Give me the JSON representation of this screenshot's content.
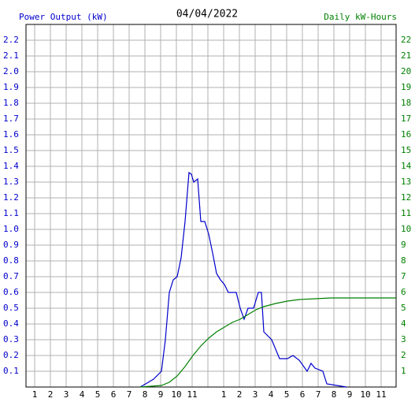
{
  "chart_data": {
    "type": "line",
    "title": "04/04/2022",
    "xlim": [
      0.45,
      23.95
    ],
    "xticks": [
      1,
      2,
      3,
      4,
      5,
      6,
      7,
      8,
      9,
      10,
      11,
      {
        "value": 12,
        "label": null
      },
      {
        "value": 13,
        "label": "1"
      },
      {
        "value": 14,
        "label": "2"
      },
      {
        "value": 15,
        "label": "3"
      },
      {
        "value": 16,
        "label": "4"
      },
      {
        "value": 17,
        "label": "5"
      },
      {
        "value": 18,
        "label": "6"
      },
      {
        "value": 19,
        "label": "7"
      },
      {
        "value": 20,
        "label": "8"
      },
      {
        "value": 21,
        "label": "9"
      },
      {
        "value": 22,
        "label": "10"
      },
      {
        "value": 23,
        "label": "11"
      }
    ],
    "ylim": [
      0,
      2.3
    ],
    "yticks": [
      0.1,
      0.2,
      0.3,
      0.4,
      0.5,
      0.6,
      0.7,
      0.8,
      0.9,
      {
        "value": 1,
        "label": "1.0"
      },
      1.1,
      1.2,
      1.3,
      1.4,
      1.5,
      1.6,
      1.7,
      1.8,
      1.9,
      {
        "value": 2,
        "label": "2.0"
      },
      2.1,
      2.2
    ],
    "y2lim": [
      0,
      23
    ],
    "y2ticks": [
      1,
      2,
      3,
      4,
      5,
      6,
      7,
      8,
      9,
      10,
      11,
      12,
      13,
      14,
      15,
      16,
      17,
      18,
      19,
      20,
      21,
      22
    ],
    "grid": true,
    "series": [
      {
        "name": "Power Output (kW)",
        "color": "#0000cc",
        "x": [
          7.7,
          8.05,
          8.55,
          9.05,
          9.3,
          9.55,
          9.8,
          10.05,
          10.3,
          10.55,
          10.8,
          10.95,
          11.1,
          11.35,
          11.55,
          11.8,
          12.05,
          12.3,
          12.55,
          12.8,
          13.05,
          13.3,
          13.8,
          14.05,
          14.3,
          14.55,
          14.9,
          15.2,
          15.4,
          15.55,
          16.05,
          16.55,
          17.05,
          17.4,
          17.8,
          18.3,
          18.55,
          18.8,
          19.3,
          19.55,
          20.8
        ],
        "values": [
          0,
          0.02,
          0.05,
          0.1,
          0.3,
          0.6,
          0.68,
          0.7,
          0.82,
          1.05,
          1.36,
          1.35,
          1.3,
          1.32,
          1.05,
          1.05,
          0.97,
          0.85,
          0.72,
          0.68,
          0.65,
          0.6,
          0.6,
          0.5,
          0.43,
          0.5,
          0.5,
          0.6,
          0.6,
          0.35,
          0.3,
          0.18,
          0.18,
          0.2,
          0.17,
          0.1,
          0.15,
          0.12,
          0.1,
          0.02,
          0
        ]
      },
      {
        "name": "Daily kW-Hours",
        "color": "#008000",
        "axis": "y2",
        "x": [
          7.7,
          9.05,
          9.55,
          10.05,
          10.55,
          11.05,
          11.55,
          12.05,
          12.55,
          13.05,
          13.55,
          14.05,
          14.55,
          15.05,
          15.55,
          16.3,
          17.05,
          17.8,
          18.8,
          19.8,
          23.95
        ],
        "values": [
          0,
          0.1,
          0.3,
          0.7,
          1.3,
          2.0,
          2.6,
          3.1,
          3.5,
          3.8,
          4.1,
          4.3,
          4.6,
          4.9,
          5.1,
          5.3,
          5.45,
          5.55,
          5.6,
          5.65,
          5.65
        ]
      }
    ]
  }
}
